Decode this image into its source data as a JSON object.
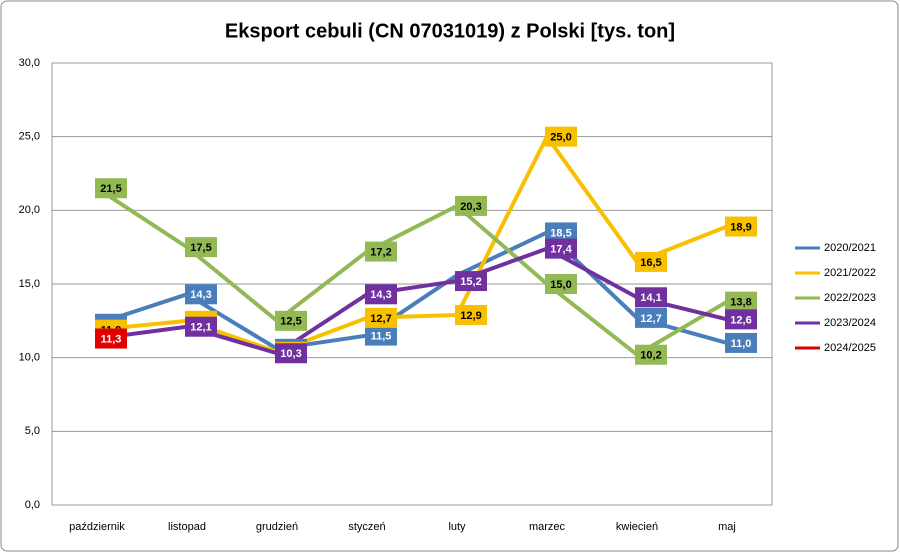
{
  "chart_data": {
    "type": "line",
    "title": "Eksport cebuli (CN 07031019) z Polski [tys. ton]",
    "categories": [
      "październik",
      "listopad",
      "grudzień",
      "styczeń",
      "luty",
      "marzec",
      "kwiecień",
      "maj"
    ],
    "series": [
      {
        "name": "2020/2021",
        "color": "#4a7ebb",
        "values": [
          12.3,
          14.3,
          10.6,
          11.5,
          15.6,
          18.5,
          12.7,
          11.0
        ],
        "value_labels": [
          "12,3",
          "14,3",
          "10,6",
          "11,5",
          null,
          "18,5",
          "12,7",
          "11,0"
        ]
      },
      {
        "name": "2021/2022",
        "color": "#f9c000",
        "values": [
          11.9,
          12.5,
          10.4,
          12.7,
          12.9,
          25.0,
          16.5,
          18.9
        ],
        "value_labels": [
          "11,9",
          "12,5",
          "10,4",
          "12,7",
          "12,9",
          "25,0",
          "16,5",
          "18,9"
        ]
      },
      {
        "name": "2022/2023",
        "color": "#92b954",
        "values": [
          21.5,
          17.5,
          12.5,
          17.2,
          20.3,
          15.0,
          10.2,
          13.8
        ],
        "value_labels": [
          "21,5",
          "17,5",
          "12,5",
          "17,2",
          "20,3",
          "15,0",
          "10,2",
          "13,8"
        ]
      },
      {
        "name": "2023/2024",
        "color": "#7030a0",
        "values": [
          11.3,
          12.1,
          10.3,
          14.3,
          15.2,
          17.4,
          14.1,
          12.6
        ],
        "value_labels": [
          "11,3",
          "12,1",
          "10,3",
          "14,3",
          "15,2",
          "17,4",
          "14,1",
          "12,6"
        ]
      },
      {
        "name": "2024/2025",
        "color": "#e00000",
        "values": [
          11.3,
          null,
          null,
          null,
          null,
          null,
          null,
          null
        ],
        "value_labels": [
          "11,3",
          null,
          null,
          null,
          null,
          null,
          null,
          null
        ]
      }
    ],
    "ylim": [
      0,
      30
    ],
    "yticks": [
      {
        "value": 0,
        "label": "0,0"
      },
      {
        "value": 5,
        "label": "5,0"
      },
      {
        "value": 10,
        "label": "10,0"
      },
      {
        "value": 15,
        "label": "15,0"
      },
      {
        "value": 20,
        "label": "20,0"
      },
      {
        "value": 25,
        "label": "25,0"
      },
      {
        "value": 30,
        "label": "30,0"
      }
    ],
    "grid": true,
    "legend": "right"
  }
}
